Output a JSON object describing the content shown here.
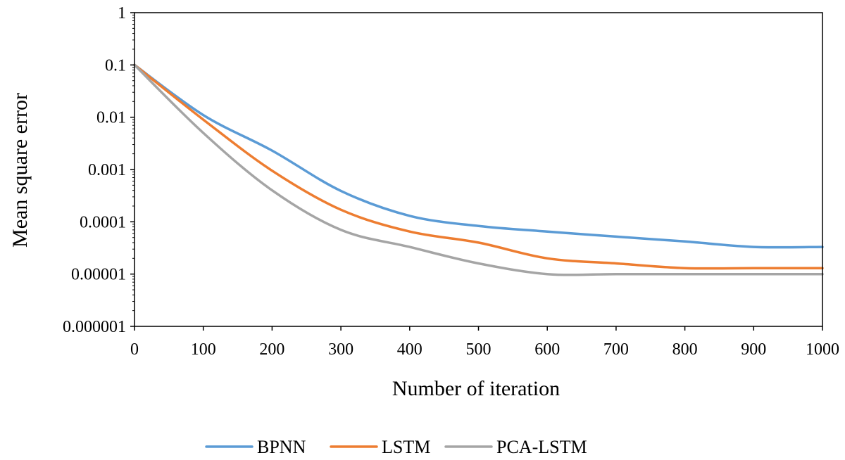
{
  "chart_data": {
    "type": "line",
    "title": "",
    "xlabel": "Number of iteration",
    "ylabel": "Mean square error",
    "xlim": [
      0,
      1000
    ],
    "ylim": [
      1e-06,
      1
    ],
    "y_scale": "log",
    "grid": false,
    "legend_placement": "bottom-center",
    "x_ticks": [
      0,
      100,
      200,
      300,
      400,
      500,
      600,
      700,
      800,
      900,
      1000
    ],
    "x_tick_labels": [
      "0",
      "100",
      "200",
      "300",
      "400",
      "500",
      "600",
      "700",
      "800",
      "900",
      "1000"
    ],
    "y_ticks": [
      1,
      0.1,
      0.01,
      0.001,
      0.0001,
      1e-05,
      1e-06
    ],
    "y_tick_labels": [
      "1",
      "0.1",
      "0.01",
      "0.001",
      "0.0001",
      "0.00001",
      "0.000001"
    ],
    "series": [
      {
        "name": "BPNN",
        "color": "#5b9bd5",
        "x": [
          0,
          100,
          200,
          300,
          400,
          500,
          600,
          700,
          800,
          900,
          1000
        ],
        "y": [
          0.1,
          0.011,
          0.0023,
          0.00039,
          0.00013,
          8.3e-05,
          6.5e-05,
          5.2e-05,
          4.2e-05,
          3.3e-05,
          3.3e-05
        ]
      },
      {
        "name": "LSTM",
        "color": "#ed7d31",
        "x": [
          0,
          100,
          200,
          300,
          400,
          500,
          600,
          700,
          800,
          900,
          1000
        ],
        "y": [
          0.1,
          0.009,
          0.00095,
          0.00017,
          6.5e-05,
          4e-05,
          2e-05,
          1.6e-05,
          1.3e-05,
          1.3e-05,
          1.3e-05
        ]
      },
      {
        "name": "PCA-LSTM",
        "color": "#a5a5a5",
        "x": [
          0,
          100,
          200,
          300,
          400,
          500,
          600,
          700,
          800,
          900,
          1000
        ],
        "y": [
          0.1,
          0.005,
          0.0004,
          7e-05,
          3.3e-05,
          1.6e-05,
          1e-05,
          1e-05,
          1e-05,
          1e-05,
          1e-05
        ]
      }
    ]
  }
}
